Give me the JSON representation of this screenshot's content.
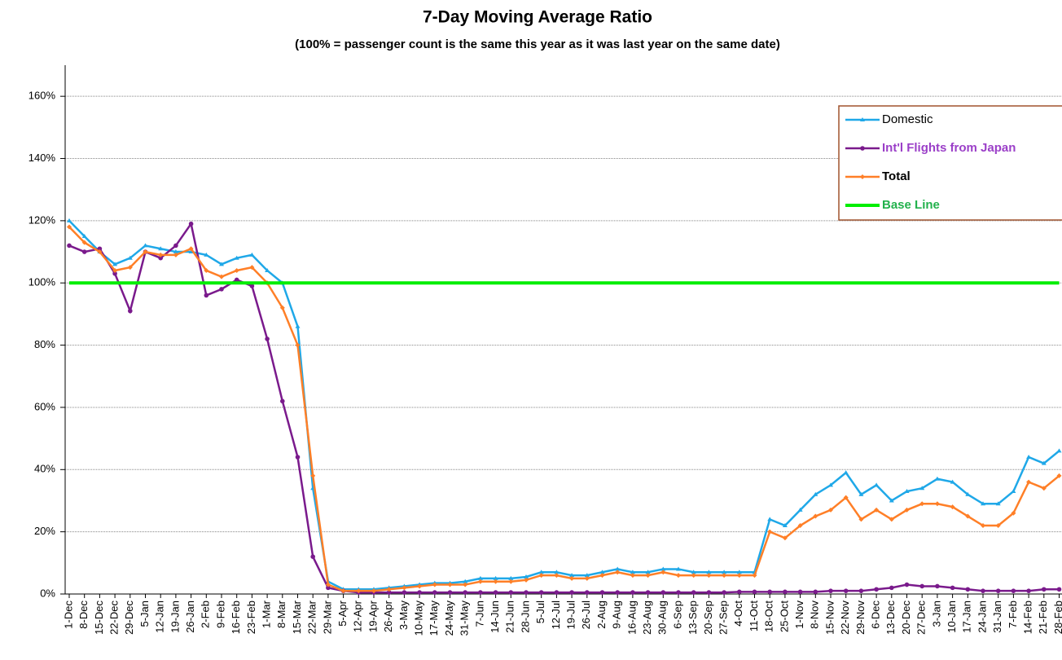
{
  "chart_data": {
    "type": "line",
    "title": "7-Day Moving Average Ratio",
    "subtitle": "(100% = passenger count is the same this year as it was last year on the same date)",
    "categories": [
      "1-Dec",
      "8-Dec",
      "15-Dec",
      "22-Dec",
      "29-Dec",
      "5-Jan",
      "12-Jan",
      "19-Jan",
      "26-Jan",
      "2-Feb",
      "9-Feb",
      "16-Feb",
      "23-Feb",
      "1-Mar",
      "8-Mar",
      "15-Mar",
      "22-Mar",
      "29-Mar",
      "5-Apr",
      "12-Apr",
      "19-Apr",
      "26-Apr",
      "3-May",
      "10-May",
      "17-May",
      "24-May",
      "31-May",
      "7-Jun",
      "14-Jun",
      "21-Jun",
      "28-Jun",
      "5-Jul",
      "12-Jul",
      "19-Jul",
      "26-Jul",
      "2-Aug",
      "9-Aug",
      "16-Aug",
      "23-Aug",
      "30-Aug",
      "6-Sep",
      "13-Sep",
      "20-Sep",
      "27-Sep",
      "4-Oct",
      "11-Oct",
      "18-Oct",
      "25-Oct",
      "1-Nov",
      "8-Nov",
      "15-Nov",
      "22-Nov",
      "29-Nov",
      "6-Dec",
      "13-Dec",
      "20-Dec",
      "27-Dec",
      "3-Jan",
      "10-Jan",
      "17-Jan",
      "24-Jan",
      "31-Jan",
      "7-Feb",
      "14-Feb",
      "21-Feb",
      "28-Feb"
    ],
    "series": [
      {
        "name": "Domestic",
        "color": "#1fa8e8",
        "marker": "triangle",
        "values": [
          120,
          115,
          110,
          106,
          108,
          112,
          111,
          110,
          110,
          109,
          106,
          108,
          109,
          104,
          100,
          86,
          34,
          4,
          1.5,
          1.5,
          1.5,
          2,
          2.5,
          3,
          3.5,
          3.5,
          4,
          5,
          5,
          5,
          5.5,
          7,
          7,
          6,
          6,
          7,
          8,
          7,
          7,
          8,
          8,
          7,
          7,
          7,
          7,
          7,
          24,
          22,
          27,
          32,
          35,
          39,
          32,
          35,
          30,
          33,
          34,
          37,
          36,
          32,
          29,
          29,
          33,
          44,
          42,
          46
        ]
      },
      {
        "name": "Int'l Flights from Japan",
        "color": "#7a1a8c",
        "marker": "circle",
        "values": [
          112,
          110,
          111,
          103,
          91,
          110,
          108,
          112,
          119,
          96,
          98,
          101,
          99,
          82,
          62,
          44,
          12,
          2,
          1,
          0.5,
          0.5,
          0.5,
          0.5,
          0.5,
          0.5,
          0.5,
          0.5,
          0.5,
          0.5,
          0.5,
          0.5,
          0.5,
          0.5,
          0.5,
          0.5,
          0.5,
          0.5,
          0.5,
          0.5,
          0.5,
          0.5,
          0.5,
          0.5,
          0.5,
          0.7,
          0.7,
          0.7,
          0.7,
          0.7,
          0.7,
          1,
          1,
          1,
          1.5,
          2,
          3,
          2.5,
          2.5,
          2,
          1.5,
          1,
          1,
          1,
          1,
          1.5,
          1.5
        ]
      },
      {
        "name": "Total",
        "color": "#ff7f27",
        "marker": "diamond",
        "values": [
          118,
          113,
          110,
          104,
          105,
          110,
          109,
          109,
          111,
          104,
          102,
          104,
          105,
          100,
          92,
          80,
          38,
          3,
          1,
          1,
          1,
          1.5,
          2,
          2.5,
          3,
          3,
          3,
          4,
          4,
          4,
          4.5,
          6,
          6,
          5,
          5,
          6,
          7,
          6,
          6,
          7,
          6,
          6,
          6,
          6,
          6,
          6,
          20,
          18,
          22,
          25,
          27,
          31,
          24,
          27,
          24,
          27,
          29,
          29,
          28,
          25,
          22,
          22,
          26,
          36,
          34,
          38
        ]
      },
      {
        "name": "Base Line",
        "color": "#00ee00",
        "marker": "none",
        "values": [
          100,
          100,
          100,
          100,
          100,
          100,
          100,
          100,
          100,
          100,
          100,
          100,
          100,
          100,
          100,
          100,
          100,
          100,
          100,
          100,
          100,
          100,
          100,
          100,
          100,
          100,
          100,
          100,
          100,
          100,
          100,
          100,
          100,
          100,
          100,
          100,
          100,
          100,
          100,
          100,
          100,
          100,
          100,
          100,
          100,
          100,
          100,
          100,
          100,
          100,
          100,
          100,
          100,
          100,
          100,
          100,
          100,
          100,
          100,
          100,
          100,
          100,
          100,
          100,
          100,
          100
        ]
      }
    ],
    "ylim": [
      0,
      170
    ],
    "yticks": [
      {
        "value": 0,
        "label": "0%"
      },
      {
        "value": 20,
        "label": "20%"
      },
      {
        "value": 40,
        "label": "40%"
      },
      {
        "value": 60,
        "label": "60%"
      },
      {
        "value": 80,
        "label": "80%"
      },
      {
        "value": 100,
        "label": "100%"
      },
      {
        "value": 120,
        "label": "120%"
      },
      {
        "value": 140,
        "label": "140%"
      },
      {
        "value": 160,
        "label": "160%"
      }
    ],
    "grid": true,
    "legend": "top-right"
  }
}
